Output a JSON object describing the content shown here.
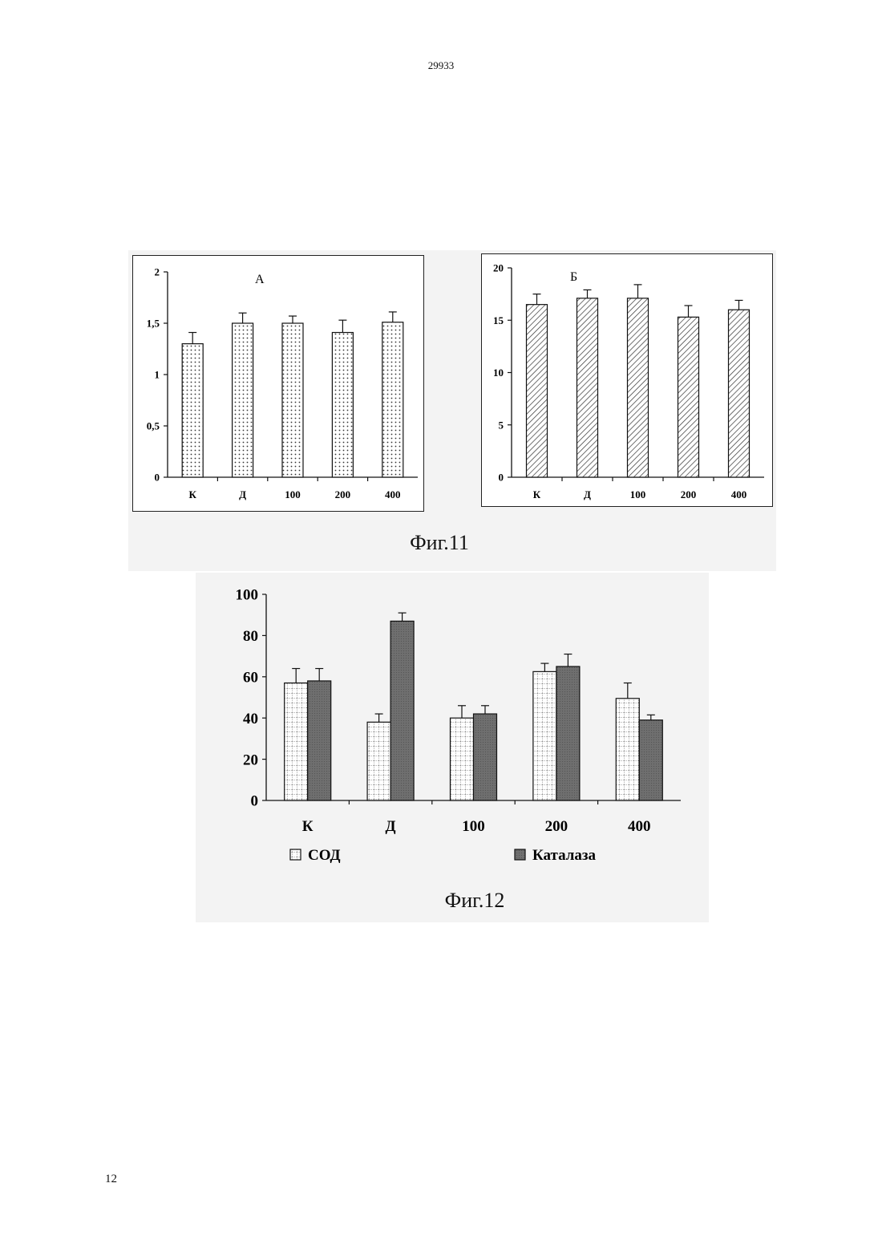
{
  "document": {
    "number": "29933",
    "page": "12"
  },
  "figures": {
    "fig11": {
      "caption": "Фиг.11",
      "panel_a_label": "А",
      "panel_b_label": "Б"
    },
    "fig12": {
      "caption": "Фиг.12"
    }
  },
  "colors": {
    "axis": "#111111",
    "bar_dark": "#6f6f6f",
    "bar_light": "#ffffff",
    "figure_background": "#f3f3f3"
  },
  "chart_data": [
    {
      "type": "bar",
      "panel": "А",
      "categories": [
        "К",
        "Д",
        "100",
        "200",
        "400"
      ],
      "series": [
        {
          "values": [
            1.3,
            1.5,
            1.5,
            1.41,
            1.51
          ],
          "errors": [
            0.11,
            0.1,
            0.07,
            0.12,
            0.1
          ]
        }
      ],
      "yticks": [
        "0",
        "0,5",
        "1",
        "1,5",
        "2"
      ],
      "ylim": [
        0,
        2
      ],
      "fill": "dotted",
      "grid": false,
      "legend": "none"
    },
    {
      "type": "bar",
      "panel": "Б",
      "categories": [
        "К",
        "Д",
        "100",
        "200",
        "400"
      ],
      "series": [
        {
          "values": [
            16.5,
            17.1,
            17.1,
            15.3,
            16.0
          ],
          "errors": [
            1.0,
            0.8,
            1.3,
            1.1,
            0.9
          ]
        }
      ],
      "yticks": [
        "0",
        "5",
        "10",
        "15",
        "20"
      ],
      "ylim": [
        0,
        20
      ],
      "fill": "hatched",
      "grid": false,
      "legend": "none"
    },
    {
      "type": "bar",
      "categories": [
        "К",
        "Д",
        "100",
        "200",
        "400"
      ],
      "series": [
        {
          "name": "СОД",
          "values": [
            57,
            38,
            40,
            62.5,
            49.5
          ],
          "errors": [
            7,
            4,
            6,
            4,
            7.5
          ],
          "fill": "checkered"
        },
        {
          "name": "Каталаза",
          "values": [
            58,
            87,
            42,
            65,
            39
          ],
          "errors": [
            6,
            4,
            4,
            6,
            2.5
          ],
          "fill": "dark"
        }
      ],
      "yticks": [
        "0",
        "20",
        "40",
        "60",
        "80",
        "100"
      ],
      "ylim": [
        0,
        100
      ],
      "grid": false,
      "legend": "bottom"
    }
  ]
}
